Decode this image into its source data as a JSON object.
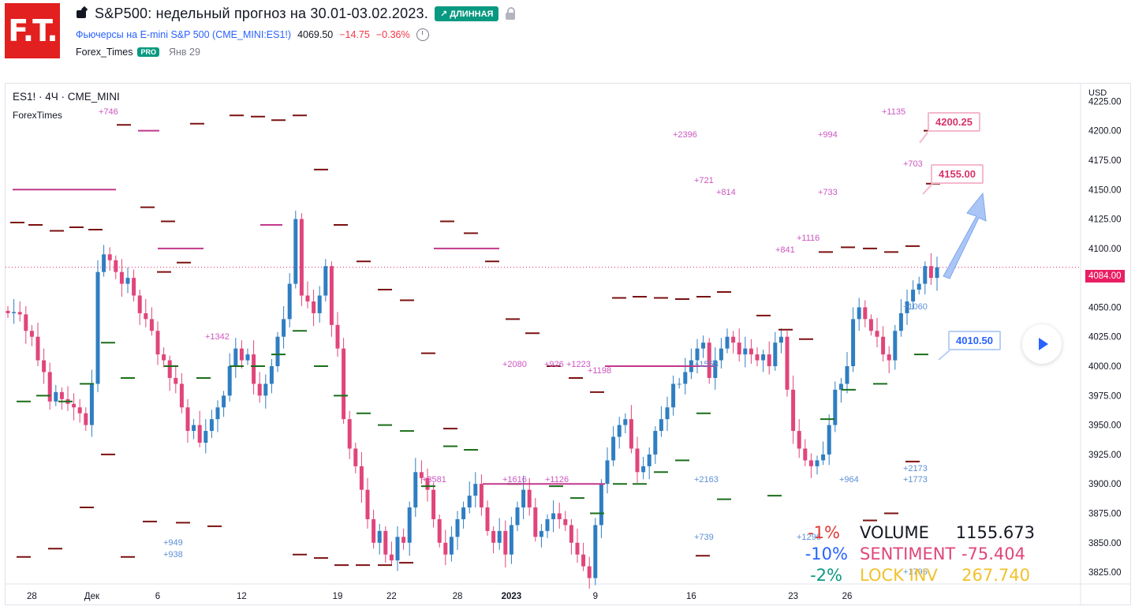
{
  "header": {
    "logo_text": "F.T.",
    "title": "S&P500: недельный прогноз на 30.01-03.02.2023.",
    "direction_badge": "↗ ДЛИННАЯ",
    "symbol_link": "Фьючерсы на E-mini S&P 500 (CME_MINI:ES1!)",
    "last_price": "4069.50",
    "change": "−14.75",
    "change_pct": "−0.36%",
    "author": "Forex_Times",
    "author_badge": "PRO",
    "date": "Янв 29"
  },
  "chart_legend": {
    "symbol_line": "ES1! · 4Ч · CME_MINI",
    "indicator": "ForexTimes"
  },
  "callouts": {
    "target_high": "4200.25",
    "target_mid": "4155.00",
    "support": "4010.50"
  },
  "stats": [
    {
      "pct": "-1%",
      "label": "VOLUME",
      "value": "1155.673",
      "pct_color": "#e53935",
      "label_color": "#131722"
    },
    {
      "pct": "-10%",
      "label": "SENTIMENT",
      "value": "-75.404",
      "pct_color": "#2962ff",
      "label_color": "#e0457b"
    },
    {
      "pct": "-2%",
      "label": "LOCK INV",
      "value": "267.740",
      "pct_color": "#089981",
      "label_color": "#f2c12e"
    }
  ],
  "colors": {
    "bull": "#2f7ec2",
    "bear": "#e0457b",
    "resistance": "#7b1010",
    "support": "#1a6e1a",
    "magenta": "#c2388a",
    "annot_pink": "#cc55c2",
    "annot_blue": "#5b8fd6"
  },
  "chart_data": {
    "type": "candlestick",
    "axis_currency": "USD",
    "ylim": [
      3815,
      4240
    ],
    "y_ticks": [
      4225,
      4200,
      4175,
      4150,
      4125,
      4100,
      4075,
      4050,
      4025,
      4000,
      3975,
      3950,
      3925,
      3900,
      3875,
      3850,
      3825
    ],
    "y_tick_labels": [
      "4225.00",
      "4200.00",
      "4175.00",
      "4150.00",
      "4125.00",
      "4100.00",
      "4075.00",
      "4050.00",
      "4025.00",
      "4000.00",
      "3975.00",
      "3950.00",
      "3925.00",
      "3900.00",
      "3875.00",
      "3850.00",
      "3825.00"
    ],
    "x_ticks": [
      {
        "label": "28",
        "i": 4
      },
      {
        "label": "Дек",
        "i": 14
      },
      {
        "label": "6",
        "i": 25
      },
      {
        "label": "12",
        "i": 39
      },
      {
        "label": "19",
        "i": 55
      },
      {
        "label": "22",
        "i": 64
      },
      {
        "label": "28",
        "i": 75
      },
      {
        "label": "2023",
        "i": 84
      },
      {
        "label": "9",
        "i": 98
      },
      {
        "label": "16",
        "i": 114
      },
      {
        "label": "23",
        "i": 131
      },
      {
        "label": "26",
        "i": 140
      }
    ],
    "last_price": 4084.0,
    "last_price_label": "4084.00",
    "closes": [
      4045,
      4046,
      4044,
      4030,
      4025,
      4005,
      3995,
      3970,
      3978,
      3972,
      3968,
      3965,
      3960,
      3950,
      3985,
      4080,
      4095,
      4090,
      4080,
      4070,
      4075,
      4060,
      4045,
      4040,
      4030,
      4010,
      4005,
      3990,
      3985,
      3965,
      3945,
      3950,
      3935,
      3945,
      3955,
      3965,
      3975,
      4000,
      4015,
      4005,
      4010,
      3985,
      3975,
      3985,
      4000,
      4025,
      4040,
      4070,
      4125,
      4060,
      4055,
      4045,
      4060,
      4085,
      4035,
      4015,
      3955,
      3930,
      3915,
      3895,
      3870,
      3850,
      3860,
      3840,
      3835,
      3855,
      3850,
      3880,
      3910,
      3905,
      3895,
      3870,
      3850,
      3840,
      3855,
      3870,
      3880,
      3890,
      3900,
      3880,
      3860,
      3850,
      3860,
      3840,
      3865,
      3880,
      3895,
      3880,
      3855,
      3860,
      3870,
      3875,
      3870,
      3865,
      3850,
      3840,
      3830,
      3820,
      3865,
      3900,
      3920,
      3940,
      3950,
      3955,
      3930,
      3910,
      3915,
      3925,
      3945,
      3955,
      3965,
      3985,
      3985,
      3995,
      4005,
      4015,
      4020,
      3990,
      4005,
      4015,
      4025,
      4020,
      4010,
      4015,
      4010,
      4005,
      4010,
      4000,
      4020,
      4025,
      3980,
      3945,
      3930,
      3920,
      3915,
      3920,
      3925,
      3950,
      3980,
      3985,
      4000,
      4040,
      4050,
      4040,
      4030,
      4025,
      4010,
      4005,
      4030,
      4045,
      4055,
      4065,
      4070,
      4085,
      4075,
      4084
    ],
    "levels_dark_red": [
      [
        22,
        4122
      ],
      [
        45,
        4120
      ],
      [
        72,
        4115
      ],
      [
        97,
        4118
      ],
      [
        121,
        4116
      ],
      [
        157,
        4205
      ],
      [
        187,
        4135
      ],
      [
        208,
        4080
      ],
      [
        213,
        4123
      ],
      [
        233,
        4088
      ],
      [
        250,
        4206
      ],
      [
        300,
        4213
      ],
      [
        327,
        4212
      ],
      [
        353,
        4209
      ],
      [
        380,
        4213
      ],
      [
        407,
        4167
      ],
      [
        432,
        4120
      ],
      [
        461,
        4089
      ],
      [
        488,
        4065
      ],
      [
        516,
        4056
      ],
      [
        543,
        4011
      ],
      [
        571,
        3947
      ],
      [
        567,
        4123
      ],
      [
        597,
        4113
      ],
      [
        624,
        4089
      ],
      [
        650,
        4040
      ],
      [
        675,
        4028
      ],
      [
        702,
        4000
      ],
      [
        730,
        3990
      ],
      [
        757,
        3978
      ],
      [
        785,
        4058
      ],
      [
        811,
        4059
      ],
      [
        838,
        4058
      ],
      [
        865,
        4057
      ],
      [
        892,
        4059
      ],
      [
        918,
        4063
      ],
      [
        968,
        4043
      ],
      [
        996,
        4031
      ],
      [
        1022,
        4023
      ],
      [
        1047,
        4097
      ],
      [
        1075,
        4101
      ],
      [
        1103,
        4100
      ],
      [
        1130,
        4097
      ],
      [
        1157,
        4102
      ],
      [
        1183,
        4155
      ],
      [
        1180,
        4200
      ],
      [
        30,
        3838
      ],
      [
        70,
        3845
      ],
      [
        110,
        3880
      ],
      [
        137,
        3925
      ],
      [
        162,
        3838
      ],
      [
        190,
        3868
      ],
      [
        232,
        3867
      ],
      [
        272,
        3864
      ],
      [
        380,
        3840
      ],
      [
        407,
        3837
      ],
      [
        433,
        3831
      ],
      [
        460,
        3831
      ],
      [
        488,
        3831
      ],
      [
        515,
        3833
      ],
      [
        891,
        3839
      ],
      [
        1103,
        3869
      ],
      [
        1130,
        3875
      ],
      [
        1157,
        3919
      ]
    ],
    "levels_green": [
      [
        30,
        3970
      ],
      [
        55,
        3975
      ],
      [
        83,
        3970
      ],
      [
        110,
        3985
      ],
      [
        137,
        4020
      ],
      [
        162,
        3990
      ],
      [
        217,
        4000
      ],
      [
        258,
        3990
      ],
      [
        300,
        4000
      ],
      [
        327,
        4000
      ],
      [
        353,
        4010
      ],
      [
        380,
        4030
      ],
      [
        407,
        4000
      ],
      [
        432,
        3975
      ],
      [
        461,
        3960
      ],
      [
        488,
        3950
      ],
      [
        516,
        3945
      ],
      [
        543,
        3898
      ],
      [
        571,
        3932
      ],
      [
        597,
        3929
      ],
      [
        652,
        3900
      ],
      [
        705,
        3898
      ],
      [
        732,
        3888
      ],
      [
        757,
        3875
      ],
      [
        786,
        3900
      ],
      [
        811,
        3900
      ],
      [
        838,
        3910
      ],
      [
        865,
        3920
      ],
      [
        892,
        3960
      ],
      [
        918,
        3887
      ],
      [
        982,
        3890
      ],
      [
        1049,
        3955
      ],
      [
        1076,
        3980
      ],
      [
        1116,
        3985
      ],
      [
        1168,
        4010
      ]
    ],
    "levels_magenta": [
      [
        16,
        4150,
        147
      ],
      [
        175,
        4200,
        202
      ],
      [
        200,
        4100,
        258
      ],
      [
        330,
        4120,
        358
      ],
      [
        550,
        4100,
        633
      ],
      [
        612,
        3900,
        767
      ],
      [
        767,
        4000,
        907
      ]
    ],
    "annotations_pink": [
      [
        "+746",
        125,
        145
      ],
      [
        "+2396",
        853,
        174
      ],
      [
        "+994",
        1037,
        174
      ],
      [
        "+1135",
        1118,
        145
      ],
      [
        "+703",
        1145,
        211
      ],
      [
        "+721",
        880,
        232
      ],
      [
        "+814",
        908,
        247
      ],
      [
        "+733",
        1037,
        247
      ],
      [
        "+1116",
        1010,
        305
      ],
      [
        "+841",
        983,
        320
      ],
      [
        "+1342",
        260,
        430
      ],
      [
        "+2080",
        637,
        465
      ],
      [
        "+926",
        690,
        465
      ],
      [
        "+1223",
        718,
        465
      ],
      [
        "+1198",
        745,
        473
      ],
      [
        "+1616",
        637,
        611
      ],
      [
        "+1126",
        691,
        611
      ],
      [
        "+3581",
        535,
        611
      ]
    ],
    "annotations_blue": [
      [
        "+949",
        207,
        691
      ],
      [
        "+938",
        207,
        706
      ],
      [
        "+1553",
        880,
        465
      ],
      [
        "+2163",
        880,
        611
      ],
      [
        "+739",
        880,
        684
      ],
      [
        "+1296",
        1010,
        684
      ],
      [
        "+964",
        1064,
        611
      ],
      [
        "+2173",
        1145,
        597
      ],
      [
        "+1773",
        1145,
        611
      ],
      [
        "+1060",
        1145,
        392
      ],
      [
        "+1795",
        1145,
        728
      ]
    ]
  }
}
